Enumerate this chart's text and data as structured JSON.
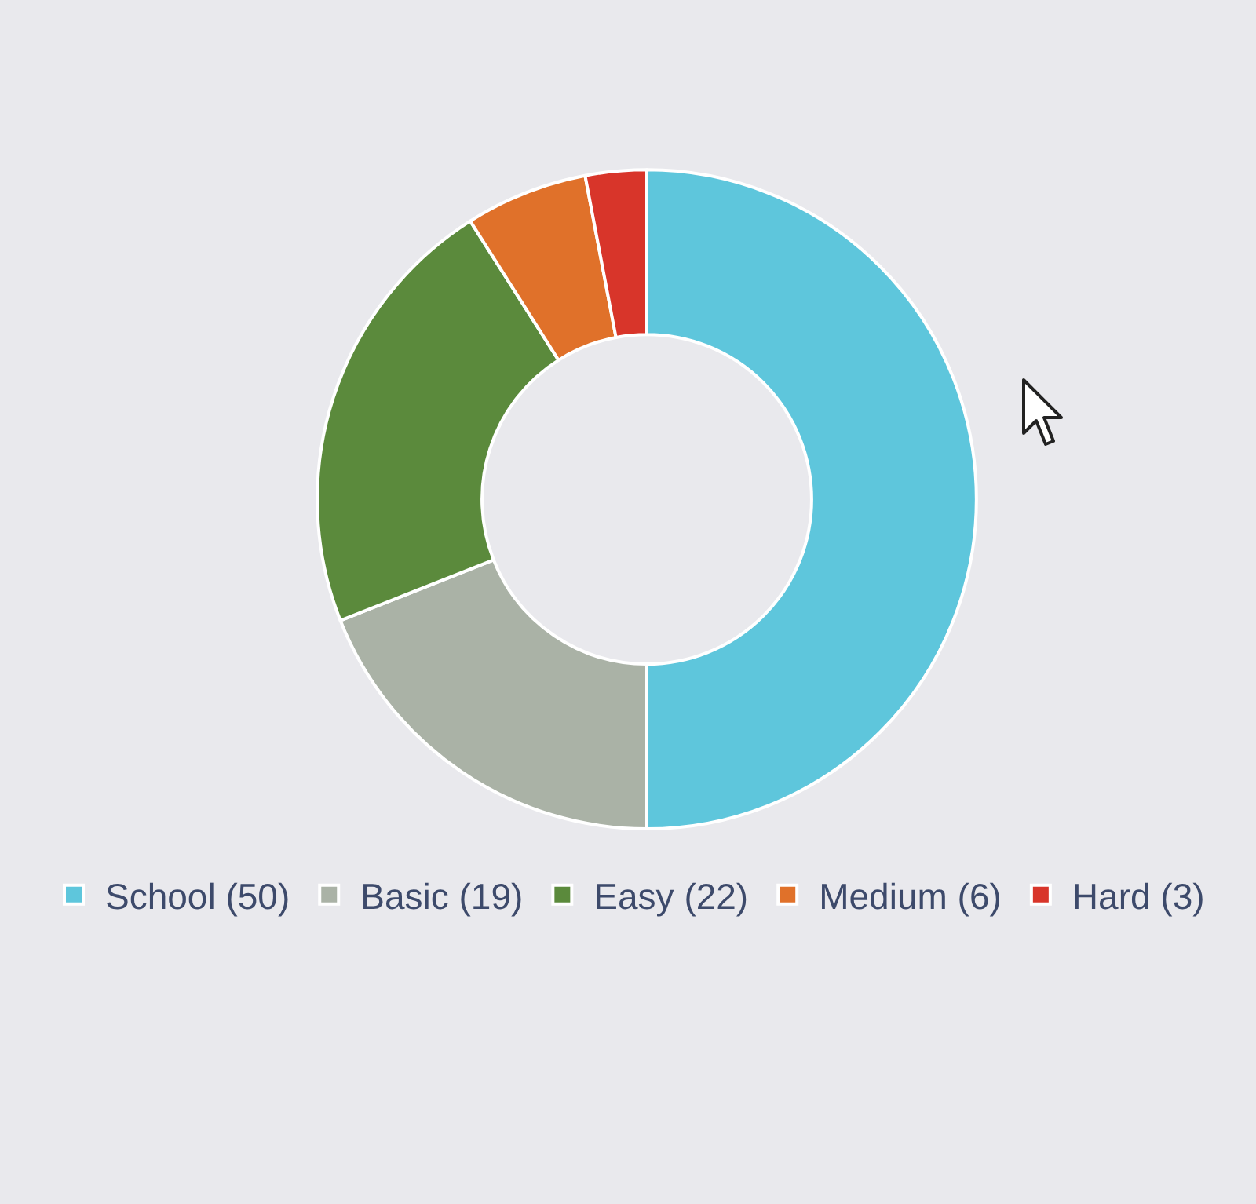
{
  "chart_data": {
    "type": "donut",
    "categories": [
      "School (50)",
      "Basic (19)",
      "Easy (22)",
      "Medium (6)",
      "Hard (3)"
    ],
    "values": [
      50,
      19,
      22,
      6,
      3
    ],
    "colors": [
      "#5ec6dc",
      "#aab2a6",
      "#5b8a3c",
      "#e0712a",
      "#d8352a"
    ],
    "legend": "bottom"
  }
}
